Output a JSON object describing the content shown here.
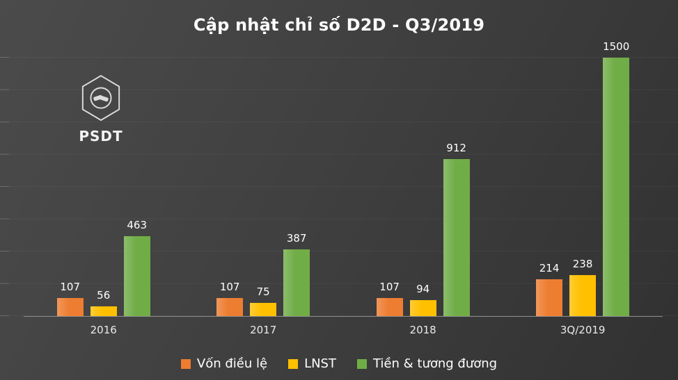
{
  "logo": {
    "text": "PSDT",
    "icon": "handshake-hexagon-icon"
  },
  "chart_data": {
    "type": "bar",
    "title": "Cập nhật chỉ số D2D - Q3/2019",
    "categories": [
      "2016",
      "2017",
      "2018",
      "3Q/2019"
    ],
    "series": [
      {
        "name": "Vốn điều lệ",
        "color": "#ED7D31",
        "values": [
          107,
          107,
          107,
          214
        ]
      },
      {
        "name": "LNST",
        "color": "#FFC000",
        "values": [
          56,
          75,
          94,
          238
        ]
      },
      {
        "name": "Tiền & tương đương",
        "color": "#70AD47",
        "values": [
          463,
          387,
          912,
          1500
        ]
      }
    ],
    "xlabel": "",
    "ylabel": "",
    "ylim": [
      0,
      1500
    ],
    "grid": true,
    "legend_position": "bottom",
    "background": "#3f3f3f",
    "data_labels": true
  }
}
